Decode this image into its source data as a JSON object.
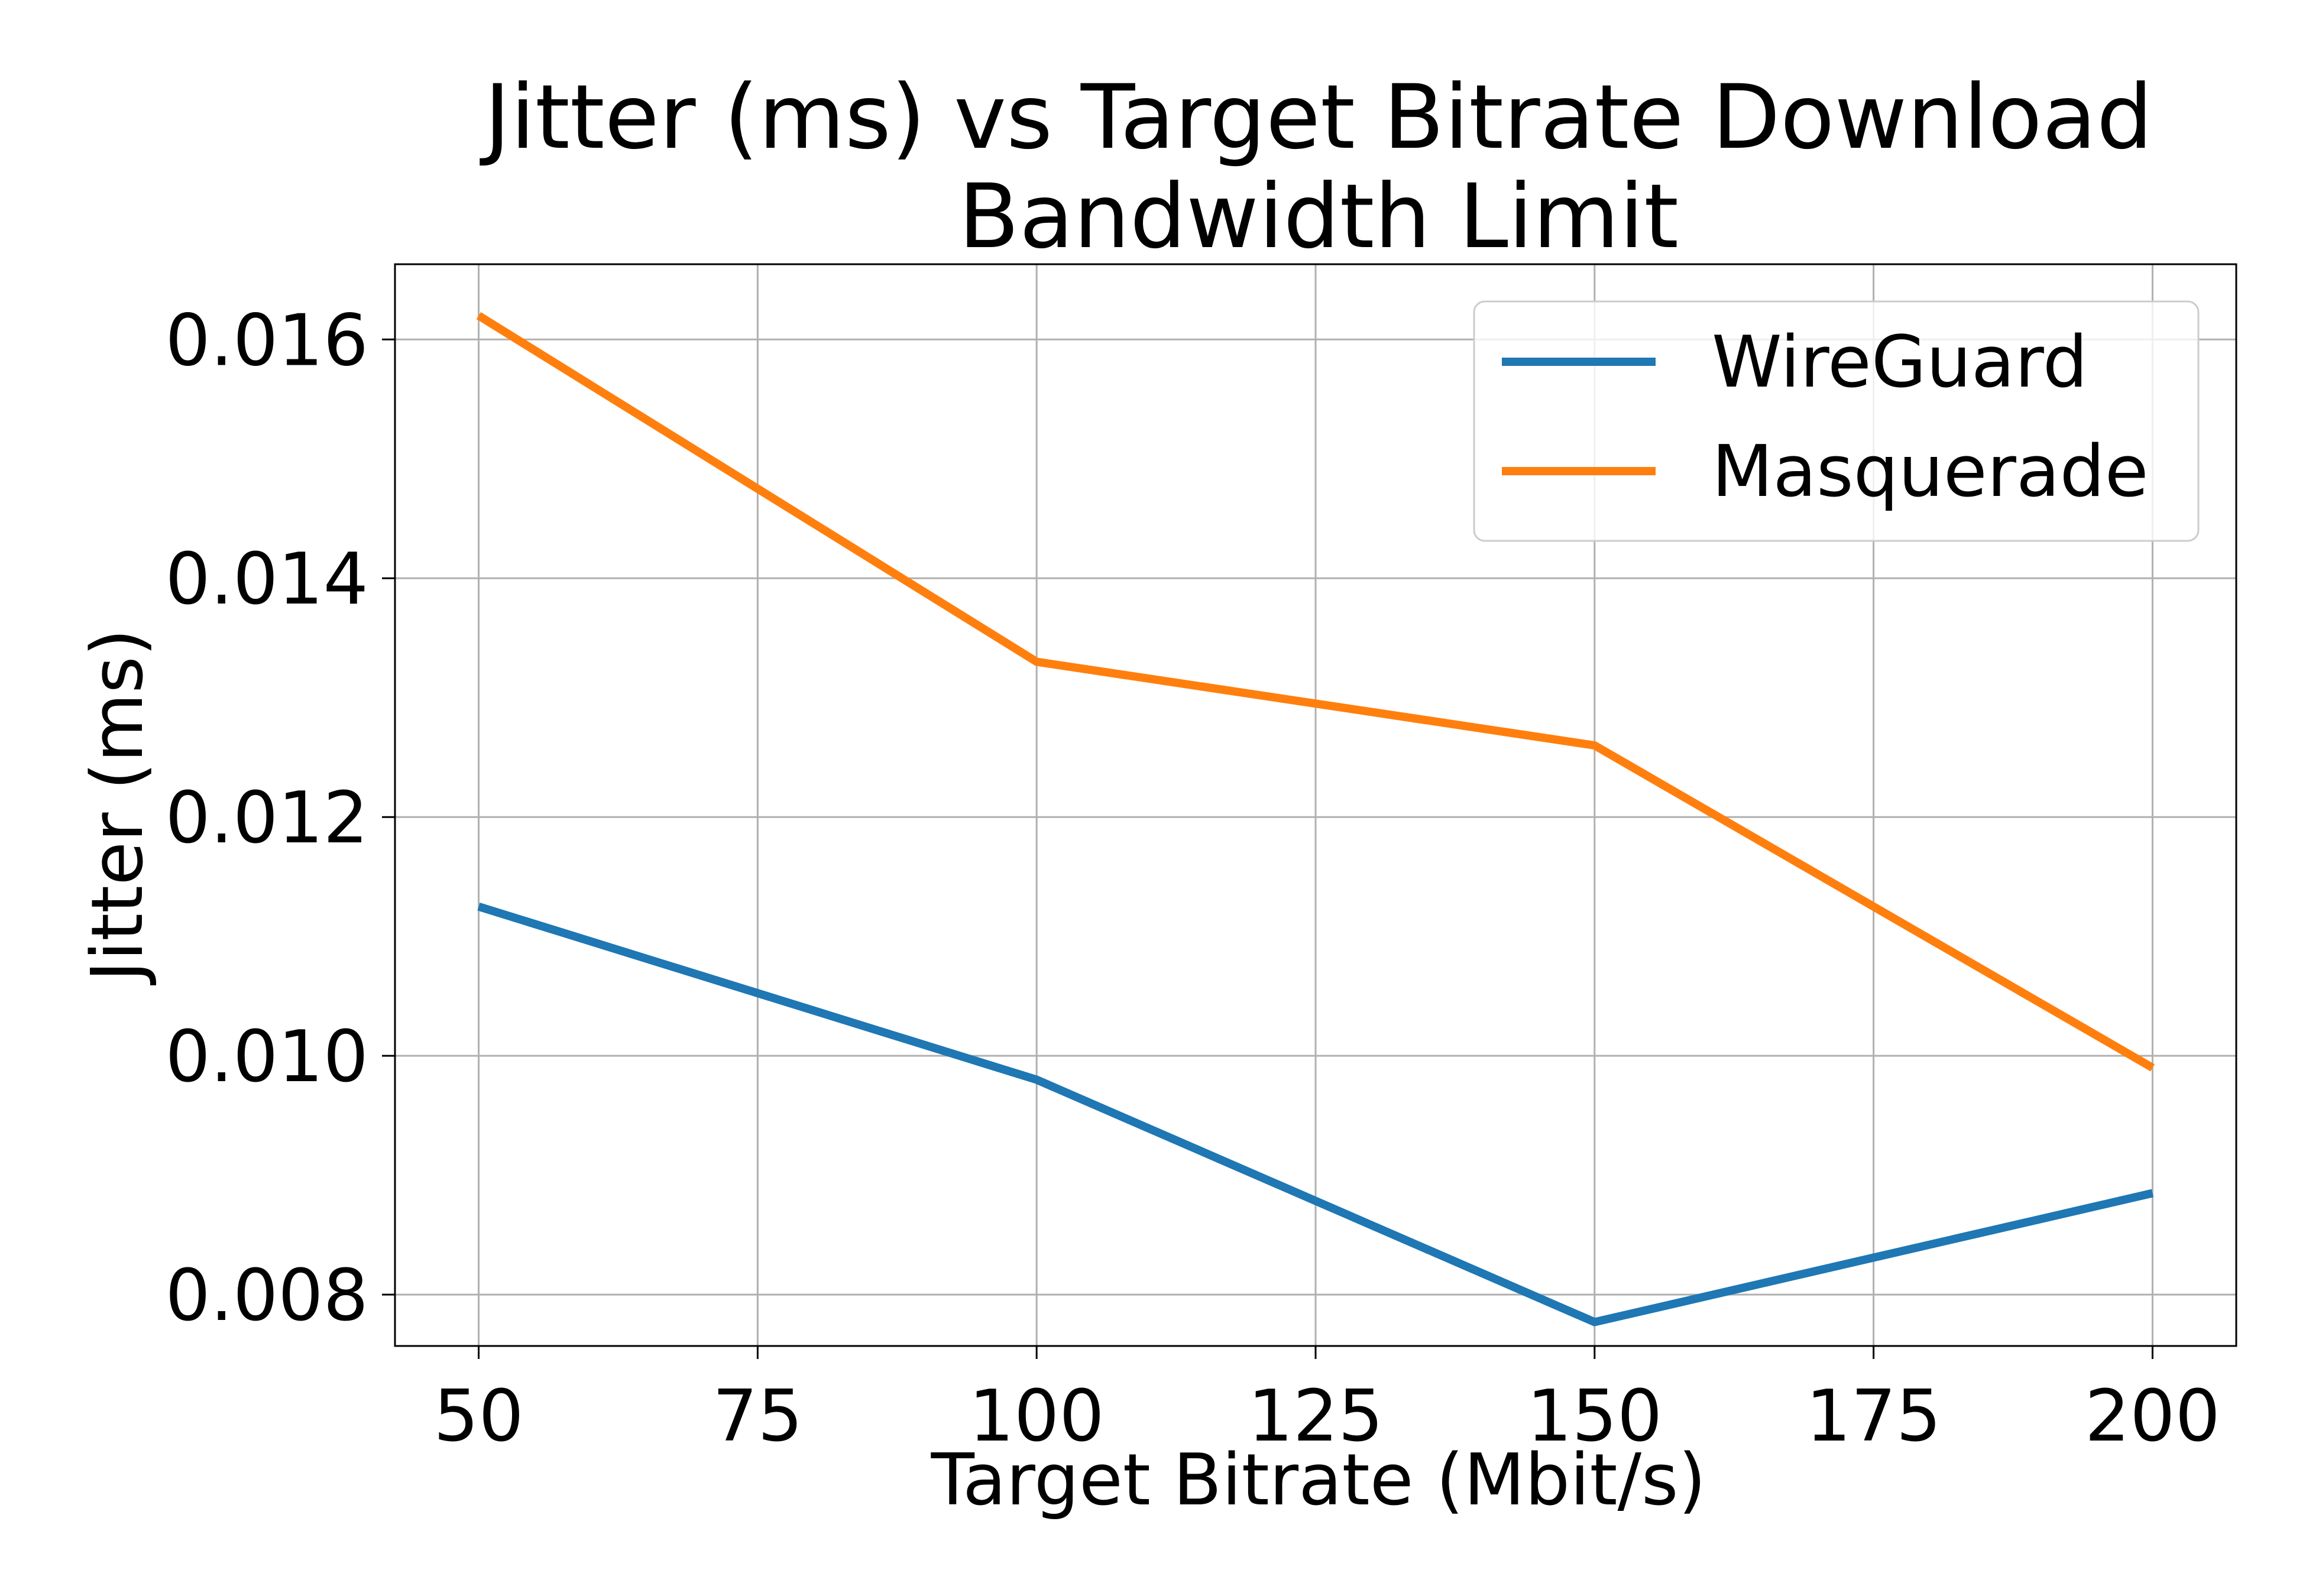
{
  "chart_data": {
    "type": "line",
    "title_lines": [
      "Jitter (ms) vs Target Bitrate Download",
      "Bandwidth Limit"
    ],
    "xlabel": "Target Bitrate (Mbit/s)",
    "ylabel": "Jitter (ms)",
    "x": [
      50,
      100,
      150,
      200
    ],
    "xlim": [
      42.5,
      207.5
    ],
    "ylim": [
      0.00757,
      0.01663
    ],
    "x_ticks": [
      50,
      75,
      100,
      125,
      150,
      175,
      200
    ],
    "x_tick_labels": [
      "50",
      "75",
      "100",
      "125",
      "150",
      "175",
      "200"
    ],
    "y_ticks": [
      0.008,
      0.01,
      0.012,
      0.014,
      0.016
    ],
    "y_tick_labels": [
      "0.008",
      "0.010",
      "0.012",
      "0.014",
      "0.016"
    ],
    "grid": true,
    "legend_position": "upper right",
    "series": [
      {
        "name": "WireGuard",
        "color": "#1f77b4",
        "values": [
          0.01125,
          0.0098,
          0.00777,
          0.00885
        ]
      },
      {
        "name": "Masquerade",
        "color": "#ff7f0e",
        "values": [
          0.0162,
          0.0133,
          0.0126,
          0.0099
        ]
      }
    ]
  }
}
